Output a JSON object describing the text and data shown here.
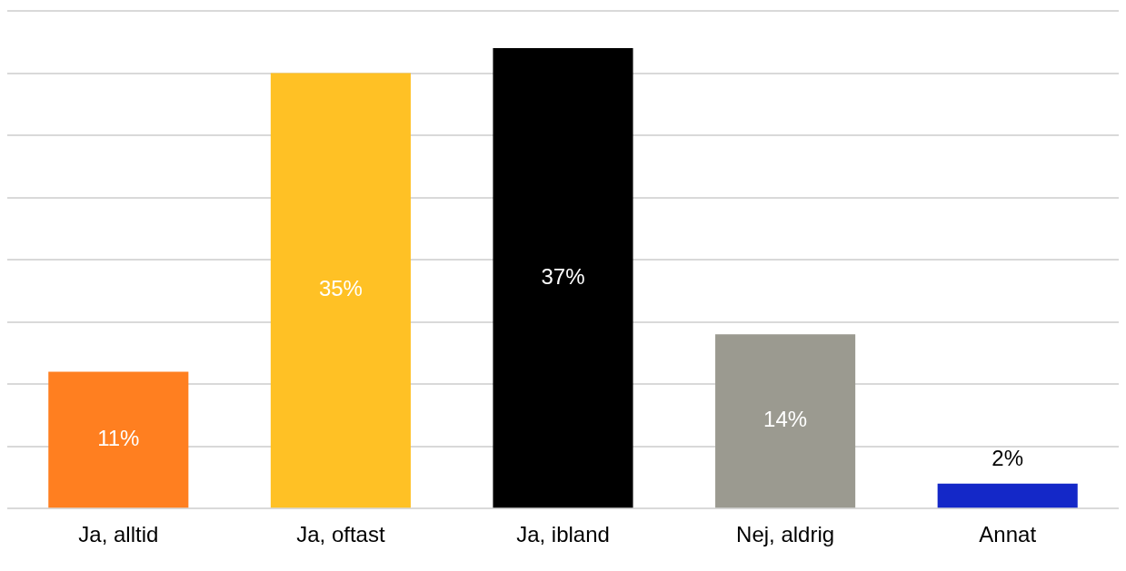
{
  "chart_data": {
    "type": "bar",
    "categories": [
      "Ja, alltid",
      "Ja, oftast",
      "Ja, ibland",
      "Nej, aldrig",
      "Annat"
    ],
    "values": [
      11,
      35,
      37,
      14,
      2
    ],
    "colors": [
      "#ff7f20",
      "#ffc125",
      "#000000",
      "#9b9a90",
      "#1428c8"
    ],
    "ylim": [
      0,
      40
    ],
    "yticks": [
      {
        "value": 0,
        "label": null
      },
      {
        "value": 5,
        "label": null
      },
      {
        "value": 10,
        "label": null
      },
      {
        "value": 15,
        "label": null
      },
      {
        "value": 20,
        "label": null
      },
      {
        "value": 25,
        "label": null
      },
      {
        "value": 30,
        "label": null
      },
      {
        "value": 35,
        "label": null
      },
      {
        "value": 40,
        "label": null
      }
    ],
    "tick_labels": "x",
    "grid": "y",
    "data_labels": true,
    "value_labels": [
      "11%",
      "35%",
      "37%",
      "14%",
      "2%"
    ]
  }
}
